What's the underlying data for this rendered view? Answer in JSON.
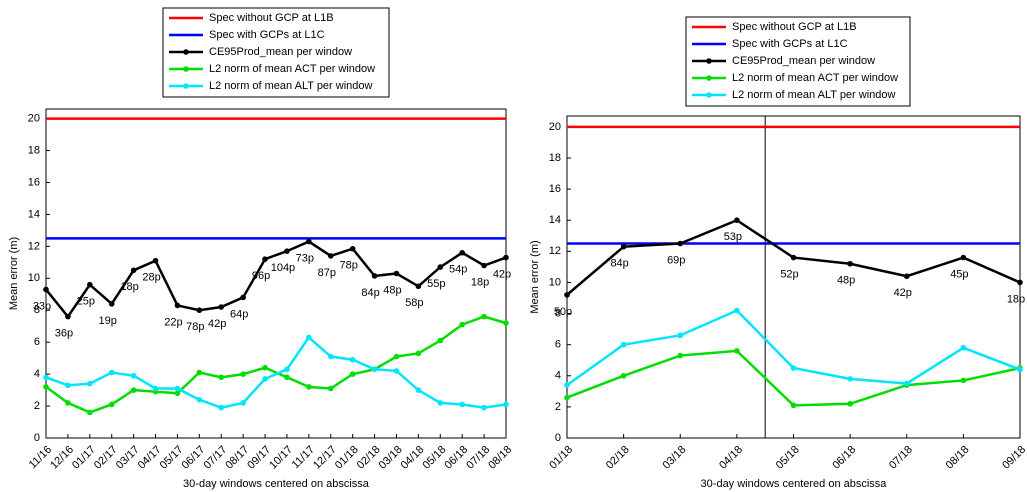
{
  "chart_data": [
    {
      "type": "line",
      "xlabel": "30-day windows centered on abscissa",
      "ylabel": "Mean error (m)",
      "categories": [
        "11/16",
        "12/16",
        "01/17",
        "02/17",
        "03/17",
        "04/17",
        "05/17",
        "06/17",
        "07/17",
        "08/17",
        "09/17",
        "10/17",
        "11/17",
        "12/17",
        "01/18",
        "02/18",
        "03/18",
        "04/18",
        "05/18",
        "06/18",
        "07/18",
        "08/18"
      ],
      "hlines": [
        {
          "name": "Spec without GCP at L1B",
          "color": "#ff0000",
          "value": 20
        },
        {
          "name": "Spec with GCPs at L1C",
          "color": "#0000ff",
          "value": 12.5
        }
      ],
      "series": [
        {
          "name": "CE95Prod_mean per window",
          "color": "#000000",
          "values": [
            9.3,
            7.6,
            9.6,
            8.4,
            10.5,
            11.1,
            8.3,
            8.0,
            8.2,
            8.8,
            11.2,
            11.7,
            12.3,
            11.4,
            11.85,
            10.15,
            10.3,
            9.5,
            10.7,
            11.6,
            10.8,
            11.3
          ],
          "point_labels": [
            "33p",
            "36p",
            "25p",
            "19p",
            "18p",
            "28p",
            "22p",
            "78p",
            "42p",
            "64p",
            "96p",
            "104p",
            "73p",
            "87p",
            "78p",
            "84p",
            "48p",
            "58p",
            "55p",
            "54p",
            "18p",
            "42p"
          ]
        },
        {
          "name": "L2 norm of mean ACT per window",
          "color": "#00dd00",
          "values": [
            3.2,
            2.2,
            1.6,
            2.1,
            3.0,
            2.9,
            2.8,
            4.1,
            3.8,
            4.0,
            4.4,
            3.8,
            3.2,
            3.1,
            4.0,
            4.3,
            5.1,
            5.3,
            6.1,
            7.1,
            7.6,
            7.2
          ]
        },
        {
          "name": "L2 norm of mean ALT per window",
          "color": "#00e5ff",
          "values": [
            3.8,
            3.3,
            3.4,
            4.1,
            3.9,
            3.1,
            3.1,
            2.4,
            1.9,
            2.2,
            3.7,
            4.3,
            6.3,
            5.1,
            4.9,
            4.3,
            4.2,
            3.0,
            2.2,
            2.1,
            1.9,
            2.1
          ]
        }
      ],
      "ylim": [
        0,
        20.6
      ],
      "yticks": [
        0,
        2,
        4,
        6,
        8,
        10,
        12,
        14,
        16,
        18,
        20
      ]
    },
    {
      "type": "line",
      "xlabel": "30-day windows centered on abscissa",
      "ylabel": "Mean error (m)",
      "categories": [
        "01/18",
        "02/18",
        "03/18",
        "04/18",
        "05/18",
        "06/18",
        "07/18",
        "08/18",
        "09/18"
      ],
      "hlines": [
        {
          "name": "Spec without GCP at L1B",
          "color": "#ff0000",
          "value": 20
        },
        {
          "name": "Spec with GCPs at L1C",
          "color": "#0000ff",
          "value": 12.5
        }
      ],
      "series": [
        {
          "name": "CE95Prod_mean per window",
          "color": "#000000",
          "values": [
            9.2,
            12.3,
            12.5,
            14.0,
            11.6,
            11.2,
            10.4,
            11.6,
            10.0
          ],
          "point_labels": [
            "50p",
            "84p",
            "69p",
            "53p",
            "52p",
            "48p",
            "42p",
            "45p",
            "18p"
          ]
        },
        {
          "name": "L2 norm of mean ACT per window",
          "color": "#00dd00",
          "values": [
            2.6,
            4.0,
            5.3,
            5.6,
            2.1,
            2.2,
            3.4,
            3.7,
            4.5
          ]
        },
        {
          "name": "L2 norm of mean ALT per window",
          "color": "#00e5ff",
          "values": [
            3.4,
            6.0,
            6.6,
            8.2,
            4.5,
            3.8,
            3.5,
            5.8,
            4.4
          ]
        }
      ],
      "vline_x": 3.5,
      "ylim": [
        0,
        20.7
      ],
      "yticks": [
        0,
        2,
        4,
        6,
        8,
        10,
        12,
        14,
        16,
        18,
        20
      ]
    }
  ]
}
